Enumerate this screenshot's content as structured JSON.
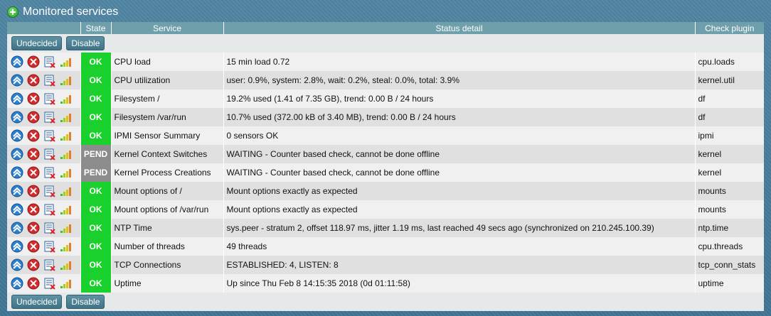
{
  "header": {
    "title": "Monitored services"
  },
  "columns": [
    "State",
    "Service",
    "Status detail",
    "Check plugin"
  ],
  "buttons": {
    "undecided": "Undecided",
    "disable": "Disable"
  },
  "colors": {
    "ok": "#19d02d",
    "pend": "#8c8c8c",
    "header_bg": "#6f9fab",
    "button_bg": "#4f8395"
  },
  "row_icons": [
    "services-icon",
    "remove-icon",
    "rulesets-icon",
    "perfgraph-icon"
  ],
  "rows": [
    {
      "state": "OK",
      "service": "CPU load",
      "detail": "15 min load 0.72",
      "plugin": "cpu.loads"
    },
    {
      "state": "OK",
      "service": "CPU utilization",
      "detail": "user: 0.9%, system: 2.8%, wait: 0.2%, steal: 0.0%, total: 3.9%",
      "plugin": "kernel.util"
    },
    {
      "state": "OK",
      "service": "Filesystem /",
      "detail": "19.2% used (1.41 of 7.35 GB), trend: 0.00 B / 24 hours",
      "plugin": "df"
    },
    {
      "state": "OK",
      "service": "Filesystem /var/run",
      "detail": "10.7% used (372.00 kB of 3.40 MB), trend: 0.00 B / 24 hours",
      "plugin": "df"
    },
    {
      "state": "OK",
      "service": "IPMI Sensor Summary",
      "detail": "0 sensors OK",
      "plugin": "ipmi"
    },
    {
      "state": "PEND",
      "service": "Kernel Context Switches",
      "detail": "WAITING - Counter based check, cannot be done offline",
      "plugin": "kernel"
    },
    {
      "state": "PEND",
      "service": "Kernel Process Creations",
      "detail": "WAITING - Counter based check, cannot be done offline",
      "plugin": "kernel"
    },
    {
      "state": "OK",
      "service": "Mount options of /",
      "detail": "Mount options exactly as expected",
      "plugin": "mounts"
    },
    {
      "state": "OK",
      "service": "Mount options of /var/run",
      "detail": "Mount options exactly as expected",
      "plugin": "mounts"
    },
    {
      "state": "OK",
      "service": "NTP Time",
      "detail": "sys.peer - stratum 2, offset 118.97 ms, jitter 1.19 ms, last reached 49 secs ago (synchronized on 210.245.100.39)",
      "plugin": "ntp.time"
    },
    {
      "state": "OK",
      "service": "Number of threads",
      "detail": "49 threads",
      "plugin": "cpu.threads"
    },
    {
      "state": "OK",
      "service": "TCP Connections",
      "detail": "ESTABLISHED: 4, LISTEN: 8",
      "plugin": "tcp_conn_stats"
    },
    {
      "state": "OK",
      "service": "Uptime",
      "detail": "Up since Thu Feb 8 14:15:35 2018 (0d 01:11:58)",
      "plugin": "uptime"
    }
  ]
}
